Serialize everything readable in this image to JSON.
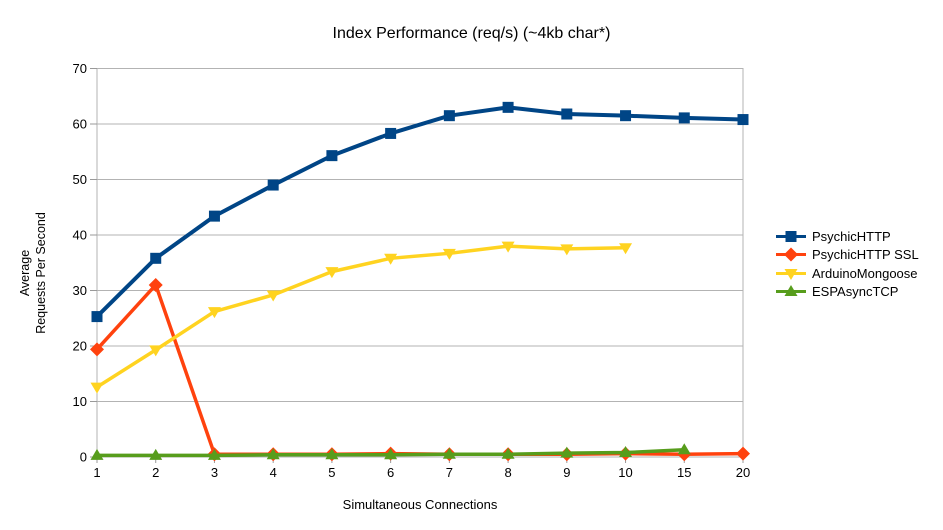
{
  "title": "Index Performance (req/s) (~4kb char*)",
  "colors": {
    "background": "#ffffff",
    "grid": "#b3b3b3",
    "axis": "#999999",
    "text": "#000000"
  },
  "chart_data": {
    "type": "line",
    "title": "Index Performance (req/s) (~4kb char*)",
    "xlabel": "Simultaneous Connections",
    "ylabel": "Average\nRequests Per Second",
    "categories": [
      "1",
      "2",
      "3",
      "4",
      "5",
      "6",
      "7",
      "8",
      "9",
      "10",
      "15",
      "20"
    ],
    "ylim": [
      0,
      70
    ],
    "yticks": [
      0,
      10,
      20,
      30,
      40,
      50,
      60,
      70
    ],
    "grid": "horizontal-only",
    "legend_position": "right",
    "series": [
      {
        "name": "PsychicHTTP",
        "color": "#004586",
        "marker": "square",
        "values": [
          25.3,
          35.8,
          43.4,
          49.0,
          54.3,
          58.3,
          61.5,
          63.0,
          61.8,
          61.5,
          61.1,
          60.8
        ]
      },
      {
        "name": "PsychicHTTP SSL",
        "color": "#ff420e",
        "marker": "diamond",
        "values": [
          19.4,
          31.0,
          0.5,
          0.5,
          0.5,
          0.6,
          0.5,
          0.5,
          0.5,
          0.6,
          0.5,
          0.6
        ]
      },
      {
        "name": "ArduinoMongoose",
        "color": "#ffd320",
        "marker": "triangle-down",
        "values": [
          12.6,
          19.3,
          26.2,
          29.2,
          33.4,
          35.8,
          36.7,
          38.0,
          37.5,
          37.7,
          null,
          null
        ]
      },
      {
        "name": "ESPAsyncTCP",
        "color": "#579d1c",
        "marker": "triangle-up",
        "values": [
          0.3,
          0.3,
          0.3,
          0.4,
          0.4,
          0.4,
          0.5,
          0.5,
          0.7,
          0.8,
          1.3,
          null
        ]
      }
    ]
  }
}
